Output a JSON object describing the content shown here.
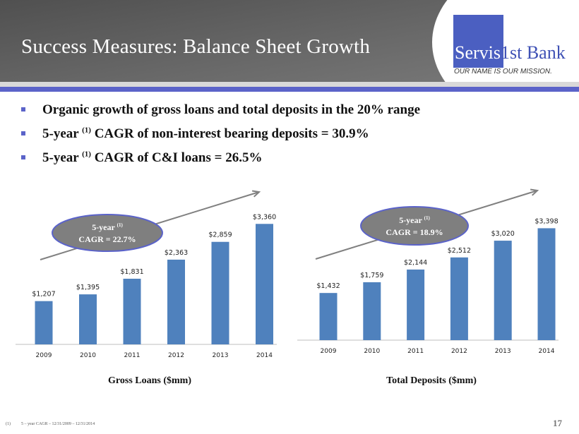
{
  "header": {
    "title": "Success Measures:  Balance Sheet Growth"
  },
  "logo": {
    "brand_part1": "Servis",
    "brand_part2": "1st Bank",
    "tagline": "OUR NAME IS OUR MISSION."
  },
  "bullets": [
    {
      "pre": "Organic growth of gross loans and total deposits in the 20% range",
      "sup": "",
      "post": ""
    },
    {
      "pre": "5-year ",
      "sup": "(1)",
      "post": " CAGR of non-interest bearing deposits = 30.9%"
    },
    {
      "pre": "5-year ",
      "sup": "(1)",
      "post": " CAGR of C&I loans = 26.5%"
    }
  ],
  "colors": {
    "bar": "#4f81bd",
    "accent": "#5b63c9",
    "ellipse_fill": "#7f7f7f",
    "ellipse_stroke": "#5b63c9",
    "arrow": "#808080"
  },
  "chart_data": [
    {
      "type": "bar",
      "title": "Gross Loans ($mm)",
      "categories": [
        "2009",
        "2010",
        "2011",
        "2012",
        "2013",
        "2014"
      ],
      "values": [
        1207,
        1395,
        1831,
        2363,
        2859,
        3360
      ],
      "labels": [
        "$1,207",
        "$1,395",
        "$1,831",
        "$2,363",
        "$2,859",
        "$3,360"
      ],
      "ylim": [
        0,
        3700
      ],
      "grid": false,
      "annotation": {
        "line1": "5-year",
        "sup": "(1)",
        "line2": "CAGR = 22.7%"
      }
    },
    {
      "type": "bar",
      "title": "Total Deposits ($mm)",
      "categories": [
        "2009",
        "2010",
        "2011",
        "2012",
        "2013",
        "2014"
      ],
      "values": [
        1432,
        1759,
        2144,
        2512,
        3020,
        3398
      ],
      "labels": [
        "$1,432",
        "$1,759",
        "$2,144",
        "$2,512",
        "$3,020",
        "$3,398"
      ],
      "ylim": [
        0,
        3900
      ],
      "grid": false,
      "annotation": {
        "line1": "5-year",
        "sup": "(1)",
        "line2": "CAGR = 18.9%"
      }
    }
  ],
  "footnote": {
    "marker": "(1)",
    "text": "5 – year CAGR – 12/31/2009 – 12/31/2014"
  },
  "page_number": "17"
}
